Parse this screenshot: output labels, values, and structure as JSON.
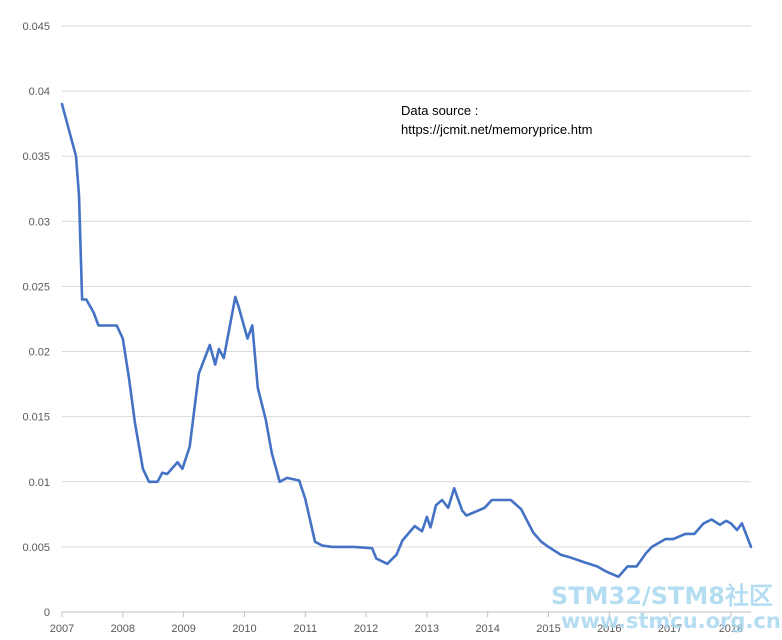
{
  "chart_data": {
    "type": "line",
    "title": "",
    "xlabel": "",
    "ylabel": "",
    "xlim": [
      2007.0,
      2018.33
    ],
    "ylim": [
      0,
      0.045
    ],
    "y_ticks": [
      0,
      0.005,
      0.01,
      0.015,
      0.02,
      0.025,
      0.03,
      0.035,
      0.04,
      0.045
    ],
    "y_tick_labels": [
      "0",
      "0.005",
      "0.01",
      "0.015",
      "0.02",
      "0.025",
      "0.03",
      "0.035",
      "0.04",
      "0.045"
    ],
    "x_ticks": [
      2007,
      2008,
      2009,
      2010,
      2011,
      2012,
      2013,
      2014,
      2015,
      2016,
      2017,
      2018
    ],
    "x_tick_labels": [
      "2007",
      "2008",
      "2009",
      "2010",
      "2011",
      "2012",
      "2013",
      "2014",
      "2015",
      "2016",
      "2017",
      "2018"
    ],
    "grid": "horizontal",
    "legend": "none",
    "annotations": [
      "Data source :",
      "https://jcmit.net/memoryprice.htm"
    ],
    "series": [
      {
        "color": "#4472c4",
        "x": [
          2007.0,
          2007.23,
          2007.28,
          2007.33,
          2007.4,
          2007.52,
          2007.6,
          2007.9,
          2008.0,
          2008.1,
          2008.2,
          2008.33,
          2008.43,
          2008.57,
          2008.65,
          2008.73,
          2008.9,
          2008.98,
          2009.1,
          2009.25,
          2009.43,
          2009.52,
          2009.58,
          2009.66,
          2009.85,
          2009.9,
          2010.05,
          2010.13,
          2010.22,
          2010.35,
          2010.45,
          2010.58,
          2010.7,
          2010.9,
          2011.0,
          2011.16,
          2011.28,
          2011.45,
          2011.65,
          2011.8,
          2012.1,
          2012.17,
          2012.35,
          2012.5,
          2012.6,
          2012.8,
          2012.92,
          2013.0,
          2013.06,
          2013.15,
          2013.25,
          2013.35,
          2013.45,
          2013.58,
          2013.65,
          2013.75,
          2013.95,
          2014.07,
          2014.38,
          2014.55,
          2014.75,
          2014.88,
          2015.0,
          2015.2,
          2015.35,
          2015.6,
          2015.8,
          2015.95,
          2016.15,
          2016.3,
          2016.45,
          2016.6,
          2016.7,
          2016.92,
          2017.05,
          2017.25,
          2017.4,
          2017.55,
          2017.68,
          2017.82,
          2017.92,
          2018.0,
          2018.1,
          2018.18,
          2018.33
        ],
        "values": [
          0.039,
          0.035,
          0.032,
          0.024,
          0.024,
          0.023,
          0.022,
          0.022,
          0.021,
          0.018,
          0.0145,
          0.011,
          0.01,
          0.01,
          0.0107,
          0.0106,
          0.0115,
          0.011,
          0.0127,
          0.0183,
          0.0205,
          0.019,
          0.0202,
          0.0195,
          0.0242,
          0.0235,
          0.021,
          0.022,
          0.0172,
          0.0148,
          0.0122,
          0.01,
          0.0103,
          0.0101,
          0.0087,
          0.0054,
          0.0051,
          0.005,
          0.005,
          0.005,
          0.0049,
          0.0041,
          0.0037,
          0.0044,
          0.0055,
          0.0066,
          0.0062,
          0.0073,
          0.0065,
          0.0082,
          0.0086,
          0.008,
          0.0095,
          0.0078,
          0.0074,
          0.0076,
          0.008,
          0.0086,
          0.0086,
          0.0079,
          0.0061,
          0.0054,
          0.005,
          0.0044,
          0.0042,
          0.0038,
          0.0035,
          0.0031,
          0.0027,
          0.0035,
          0.0035,
          0.0045,
          0.005,
          0.0056,
          0.0056,
          0.006,
          0.006,
          0.0068,
          0.0071,
          0.0067,
          0.007,
          0.0068,
          0.0063,
          0.0068,
          0.005
        ]
      }
    ]
  },
  "watermark": {
    "line1": "STM32/STM8社区",
    "line2": "www.stmcu.org.cn"
  }
}
